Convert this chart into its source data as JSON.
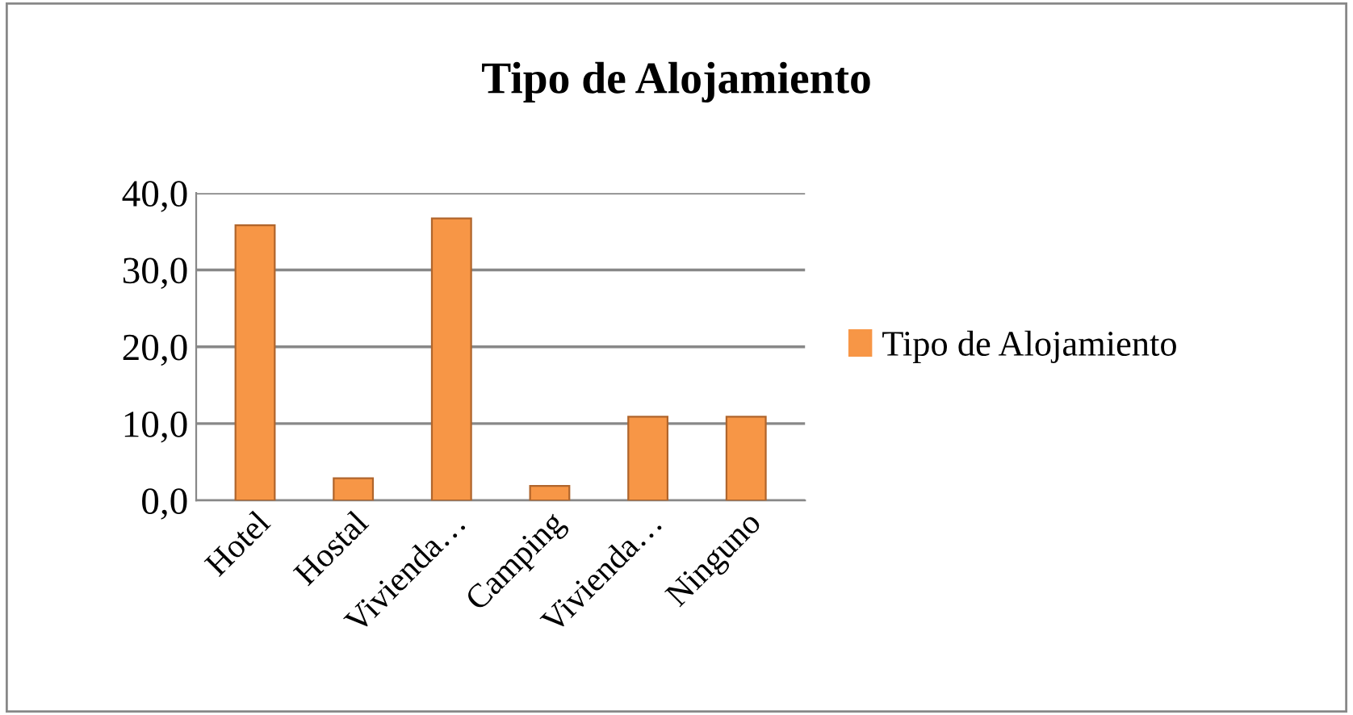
{
  "chart_data": {
    "type": "bar",
    "title": "Tipo de Alojamiento",
    "categories": [
      "Hotel",
      "Hostal",
      "Vivienda…",
      "Camping",
      "Vivienda…",
      "Ninguno"
    ],
    "series": [
      {
        "name": "Tipo de Alojamiento",
        "color": "#f79646",
        "values": [
          35.8,
          2.9,
          36.7,
          1.9,
          10.9,
          10.9
        ]
      }
    ],
    "ylim": [
      0,
      40
    ],
    "yticks": [
      {
        "value": 0,
        "label": "0,0"
      },
      {
        "value": 10,
        "label": "10,0"
      },
      {
        "value": 20,
        "label": "20,0"
      },
      {
        "value": 30,
        "label": "30,0"
      },
      {
        "value": 40,
        "label": "40,0"
      }
    ],
    "grid": "y",
    "legend": "right"
  }
}
